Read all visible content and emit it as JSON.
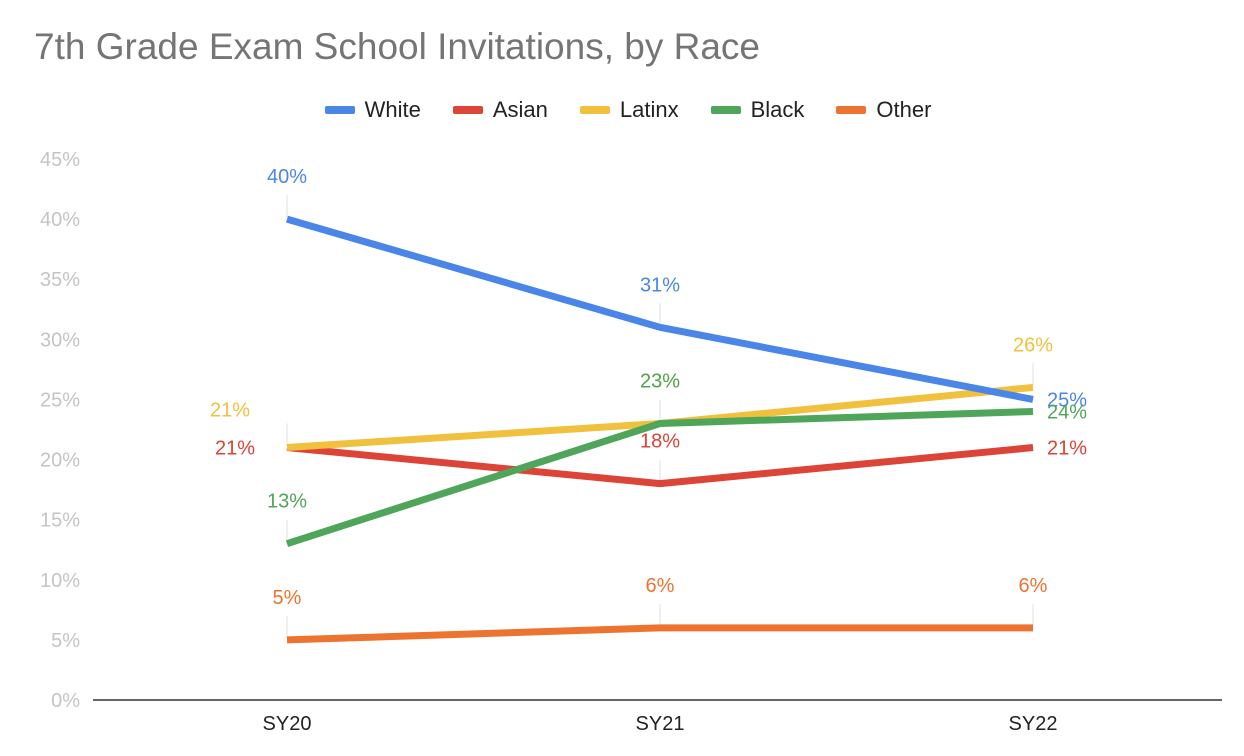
{
  "chart_data": {
    "type": "line",
    "title": "7th Grade Exam School Invitations, by Race",
    "xlabel": "",
    "ylabel": "",
    "categories": [
      "SY20",
      "SY21",
      "SY22"
    ],
    "ylim": [
      0,
      45
    ],
    "y_ticks": [
      0,
      5,
      10,
      15,
      20,
      25,
      30,
      35,
      40,
      45
    ],
    "y_tick_labels": [
      "0%",
      "5%",
      "10%",
      "15%",
      "20%",
      "25%",
      "30%",
      "35%",
      "40%",
      "45%"
    ],
    "grid": false,
    "legend_position": "top",
    "series": [
      {
        "name": "White",
        "color": "#4a86e8",
        "values": [
          40,
          31,
          25
        ],
        "labels": [
          "40%",
          "31%",
          "25%"
        ],
        "label_side": [
          "above",
          "above",
          "right"
        ]
      },
      {
        "name": "Asian",
        "color": "#db4437",
        "values": [
          21,
          18,
          21
        ],
        "labels": [
          "21%",
          "18%",
          "21%"
        ],
        "label_side": [
          "left",
          "above",
          "right"
        ]
      },
      {
        "name": "Latinx",
        "color": "#f1c03d",
        "values": [
          21,
          23,
          26
        ],
        "labels": [
          "21%",
          "23%",
          "26%"
        ],
        "label_side": [
          "above-left",
          "above",
          "above"
        ]
      },
      {
        "name": "Black",
        "color": "#4fa55a",
        "values": [
          13,
          23,
          24
        ],
        "labels": [
          "13%",
          "23%",
          "24%"
        ],
        "label_side": [
          "above",
          "above",
          "right"
        ]
      },
      {
        "name": "Other",
        "color": "#ec7430",
        "values": [
          5,
          6,
          6
        ],
        "labels": [
          "5%",
          "6%",
          "6%"
        ],
        "label_side": [
          "above",
          "above",
          "above"
        ]
      }
    ]
  }
}
